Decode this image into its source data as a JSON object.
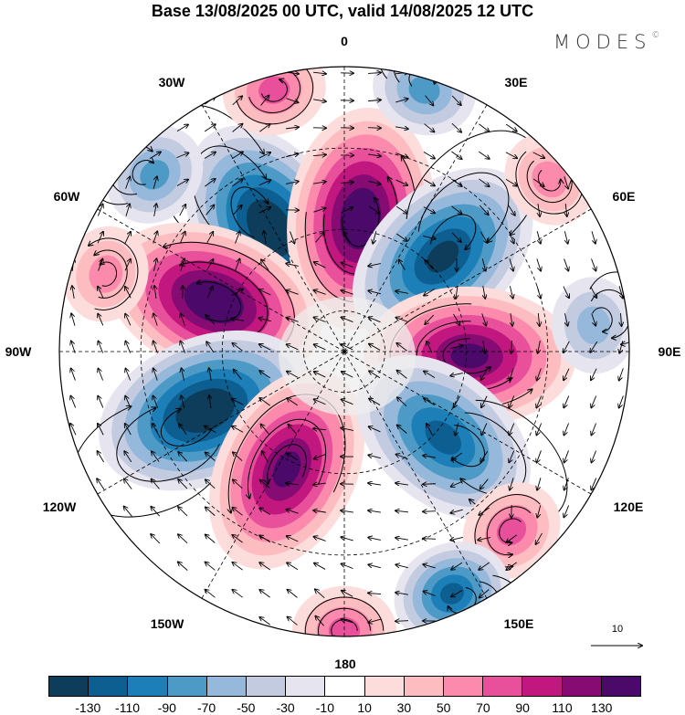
{
  "title": "Base 13/08/2025 00 UTC, valid 14/08/2025 12 UTC",
  "logo": {
    "text": "MODES",
    "mark": "©"
  },
  "longitude_labels": [
    "0",
    "30E",
    "60E",
    "90E",
    "120E",
    "150E",
    "180",
    "150W",
    "120W",
    "90W",
    "60W",
    "30W"
  ],
  "reference_vector": {
    "label": "10"
  },
  "map": {
    "projection": "south-polar-stereographic",
    "edge_latitude": -20,
    "land_color": "#f0f0f0",
    "anomalies": [
      {
        "lon": -31,
        "lat": -54.6,
        "value": -130
      },
      {
        "lon": 7,
        "lat": -57.1,
        "value": 130
      },
      {
        "lon": 46,
        "lat": -56.4,
        "value": -110
      },
      {
        "lon": -69,
        "lat": -55.7,
        "value": 130
      },
      {
        "lon": 92,
        "lat": -59.2,
        "value": 110
      },
      {
        "lon": -113,
        "lat": -52.9,
        "value": -130
      },
      {
        "lon": -154,
        "lat": -57.8,
        "value": 110
      },
      {
        "lon": 131,
        "lat": -57.8,
        "value": -90
      },
      {
        "lon": 137,
        "lat": -29.8,
        "value": 50
      },
      {
        "lon": 156,
        "lat": -24.9,
        "value": -90
      },
      {
        "lon": 180,
        "lat": -21.4,
        "value": 50
      },
      {
        "lon": -15,
        "lat": -23.5,
        "value": 50
      },
      {
        "lon": 17,
        "lat": -22.8,
        "value": -50
      },
      {
        "lon": 50,
        "lat": -24.2,
        "value": 30
      },
      {
        "lon": -47,
        "lat": -26.3,
        "value": -50
      },
      {
        "lon": -72,
        "lat": -28.4,
        "value": 30
      },
      {
        "lon": 84,
        "lat": -28.4,
        "value": -30
      }
    ]
  },
  "colorbar": {
    "colors": [
      "#0d3d5a",
      "#0e5f91",
      "#1c7fb8",
      "#4e9ac6",
      "#95b8db",
      "#c3cbe1",
      "#e6e4ef",
      "#ffffff",
      "#fddcdc",
      "#fdbcc0",
      "#fb8aad",
      "#e8509b",
      "#c2177f",
      "#860b73",
      "#4b0a69"
    ],
    "labels": [
      "-130",
      "-110",
      "-90",
      "-70",
      "-50",
      "-30",
      "-10",
      "10",
      "30",
      "50",
      "70",
      "90",
      "110",
      "130"
    ]
  }
}
